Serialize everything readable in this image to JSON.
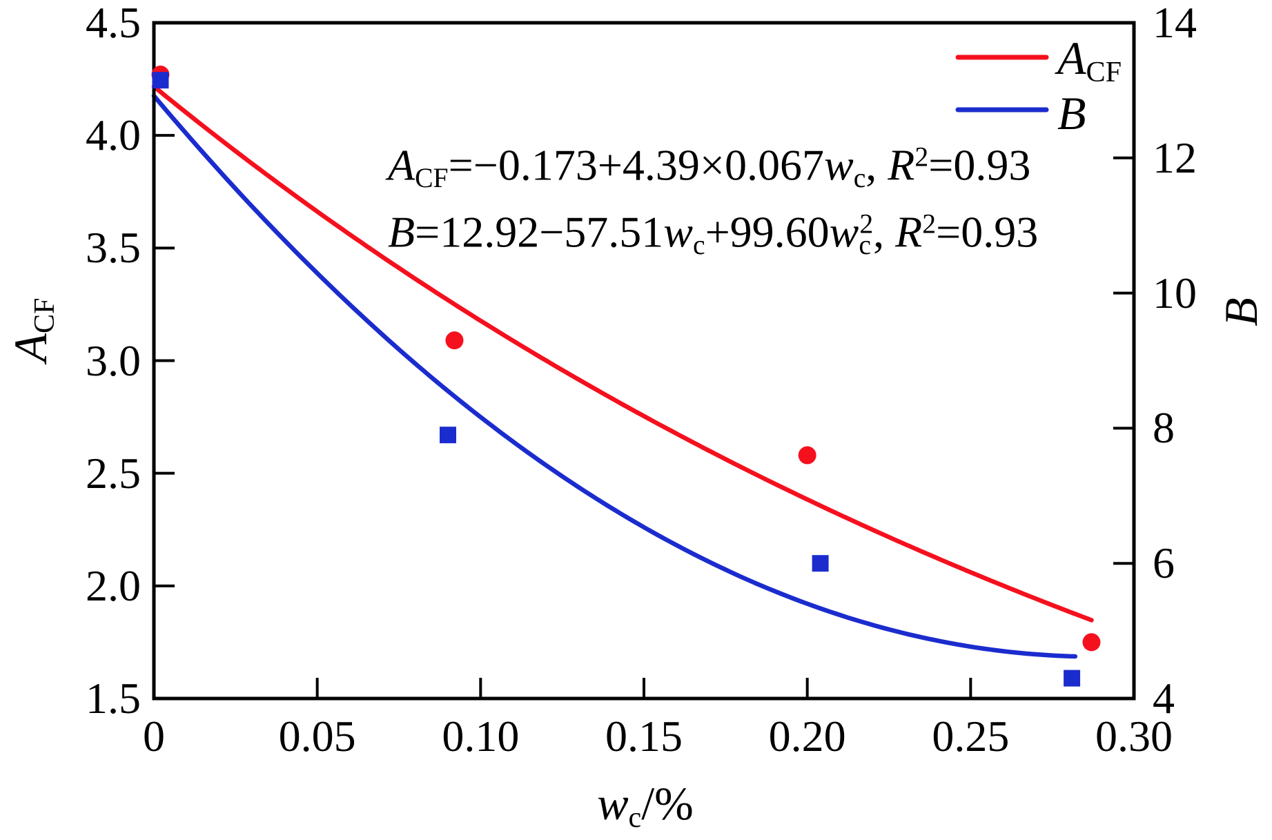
{
  "colors": {
    "acf_red": "#F5101E",
    "b_blue": "#1B2CCE",
    "frame": "#000000",
    "background": "#FFFFFF"
  },
  "chart_data": {
    "type": "scatter",
    "title": "",
    "xlabel": "w_c/%",
    "ylabel_left": "A_CF",
    "ylabel_right": "B",
    "grid": false,
    "legend_position": "top-right-inside",
    "x_axis": {
      "min": 0,
      "max": 0.3,
      "tick_values": [
        0,
        0.05,
        0.1,
        0.15,
        0.2,
        0.25,
        0.3
      ],
      "ticks": [
        "0",
        "0.05",
        "0.10",
        "0.15",
        "0.20",
        "0.25",
        "0.30"
      ]
    },
    "y_left": {
      "label": "A_CF",
      "min": 1.5,
      "max": 4.5,
      "tick_values": [
        1.5,
        2.0,
        2.5,
        3.0,
        3.5,
        4.0,
        4.5
      ],
      "ticks": [
        "1.5",
        "2.0",
        "2.5",
        "3.0",
        "3.5",
        "4.0",
        "4.5"
      ]
    },
    "y_right": {
      "label": "B",
      "min": 4,
      "max": 14,
      "tick_values": [
        4,
        6,
        8,
        10,
        12,
        14
      ],
      "ticks": [
        "4",
        "6",
        "8",
        "10",
        "12",
        "14"
      ]
    },
    "series": [
      {
        "name": "A_CF",
        "axis": "left",
        "marker": "circle",
        "color": "#F5101E",
        "points": [
          {
            "x": 0.002,
            "y": 4.27
          },
          {
            "x": 0.092,
            "y": 3.09
          },
          {
            "x": 0.2,
            "y": 2.58
          },
          {
            "x": 0.287,
            "y": 1.75
          }
        ]
      },
      {
        "name": "B",
        "axis": "right",
        "marker": "square",
        "color": "#1B2CCE",
        "points": [
          {
            "x": 0.002,
            "y": 13.15
          },
          {
            "x": 0.09,
            "y": 7.9
          },
          {
            "x": 0.204,
            "y": 6.0
          },
          {
            "x": 0.281,
            "y": 4.3
          }
        ]
      }
    ],
    "fits": [
      {
        "series": "A_CF",
        "axis": "left",
        "type": "exponential",
        "color": "#F5101E",
        "equation_text": "A_CF=−0.173+4.39×0.067w_c, R²=0.93",
        "coeffs": {
          "a": -0.173,
          "b": 4.39,
          "base": 0.067
        },
        "r_squared": 0.93,
        "x_range": [
          0,
          0.287
        ]
      },
      {
        "series": "B",
        "axis": "right",
        "type": "quadratic",
        "color": "#1B2CCE",
        "equation_text": "B=12.92−57.51w_c+99.60w_c², R²=0.93",
        "coeffs": {
          "c0": 12.92,
          "c1": -57.51,
          "c2": 99.6
        },
        "r_squared": 0.93,
        "x_range": [
          0,
          0.282
        ]
      }
    ]
  },
  "figure": {
    "x_label_tokens": [
      {
        "t": "w",
        "s": "i"
      },
      {
        "t": "c",
        "s": "sub"
      },
      {
        "t": "/%",
        "s": "n"
      }
    ],
    "y_left_label_tokens": [
      {
        "t": "A",
        "s": "i"
      },
      {
        "t": "CF",
        "s": "sub"
      }
    ],
    "y_right_label_tokens": [
      {
        "t": "B",
        "s": "i"
      }
    ],
    "legend": {
      "items": [
        {
          "series": "A_CF",
          "label": "A_CF",
          "color": "#F5101E",
          "label_tokens": [
            {
              "t": "A",
              "s": "i"
            },
            {
              "t": "CF",
              "s": "sub"
            }
          ]
        },
        {
          "series": "B",
          "label": "B",
          "color": "#1B2CCE",
          "label_tokens": [
            {
              "t": "B",
              "s": "i"
            }
          ]
        }
      ]
    },
    "annotations": [
      {
        "id": "equation-acf",
        "text": "A_CF=−0.173+4.39×0.067w_c, R²=0.93",
        "tokens": [
          {
            "t": "A",
            "s": "i"
          },
          {
            "t": "CF",
            "s": "sub"
          },
          {
            "t": "=−0.173+4.39×0.067",
            "s": "n"
          },
          {
            "t": "w",
            "s": "i"
          },
          {
            "t": "c",
            "s": "sub"
          },
          {
            "t": ", ",
            "s": "n"
          },
          {
            "t": "R",
            "s": "i"
          },
          {
            "t": "2",
            "s": "sup"
          },
          {
            "t": "=0.93",
            "s": "n"
          }
        ]
      },
      {
        "id": "equation-b",
        "text": "B=12.92−57.51w_c+99.60w_c², R²=0.93",
        "tokens": [
          {
            "t": "B",
            "s": "i"
          },
          {
            "t": "=12.92−57.51",
            "s": "n"
          },
          {
            "t": "w",
            "s": "i"
          },
          {
            "t": "c",
            "s": "sub"
          },
          {
            "t": "+99.60",
            "s": "n"
          },
          {
            "t": "w",
            "s": "i"
          },
          {
            "t": "c",
            "s": "sub"
          },
          {
            "t": "2",
            "s": "sup-over"
          },
          {
            "t": ", ",
            "s": "n"
          },
          {
            "t": "R",
            "s": "i"
          },
          {
            "t": "2",
            "s": "sup"
          },
          {
            "t": "=0.93",
            "s": "n"
          }
        ]
      }
    ]
  }
}
